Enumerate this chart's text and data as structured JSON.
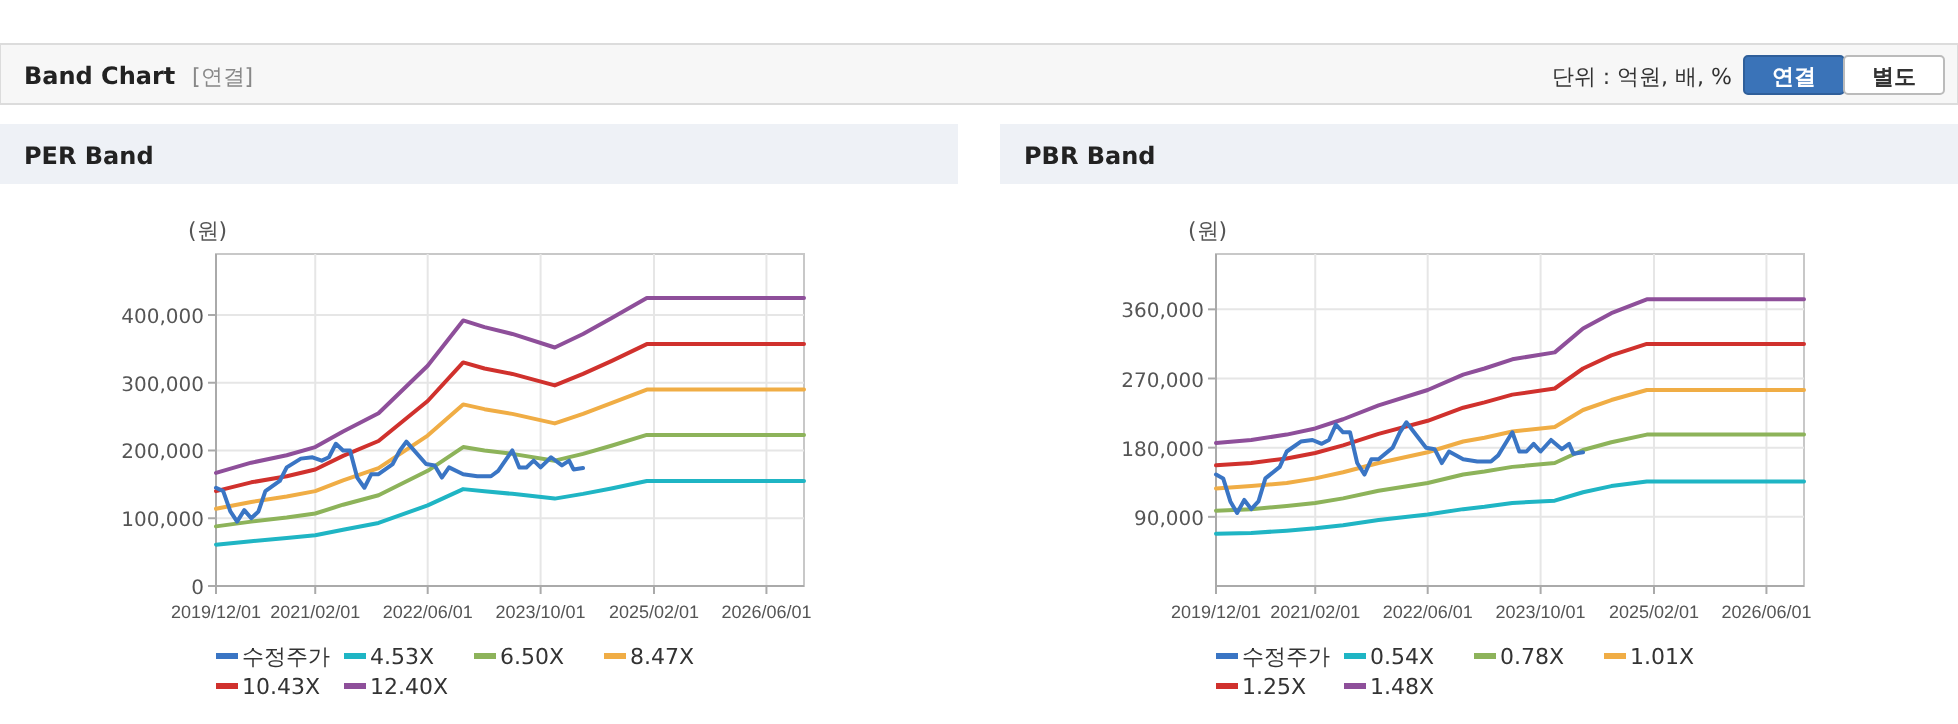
{
  "chart_data": [
    {
      "type": "other",
      "title": "Band Chart",
      "annotations": [
        "[연결]",
        "단위 : 억원, 배, %",
        "연결",
        "별도"
      ]
    },
    {
      "type": "line",
      "title": "PER Band",
      "ylabel": "(원)",
      "grid": true,
      "legend": "bottom",
      "marker": "none",
      "line_style": "solid",
      "xlim": [
        "2019-12-01",
        "2026-11-10"
      ],
      "xticks": [
        {
          "value": "2019-12-01",
          "label": "2019/12/01"
        },
        {
          "value": "2021-02-01",
          "label": "2021/02/01"
        },
        {
          "value": "2022-06-01",
          "label": "2022/06/01"
        },
        {
          "value": "2023-10-01",
          "label": "2023/10/01"
        },
        {
          "value": "2025-02-01",
          "label": "2025/02/01"
        },
        {
          "value": "2026-06-01",
          "label": "2026/06/01"
        }
      ],
      "ylim": [
        0,
        490000
      ],
      "yticks": [
        0,
        {
          "value": 100000,
          "label": "100,000"
        },
        {
          "value": 200000,
          "label": "200,000"
        },
        {
          "value": 300000,
          "label": "300,000"
        },
        {
          "value": 400000,
          "label": "400,000"
        }
      ],
      "series": [
        {
          "name": "수정주가",
          "color": "#3a75c4",
          "x": [
            "2019-12-01",
            "2020-01-01",
            "2020-02-01",
            "2020-03-01",
            "2020-04-01",
            "2020-05-01",
            "2020-06-01",
            "2020-07-01",
            "2020-09-01",
            "2020-10-01",
            "2020-12-01",
            "2021-01-20",
            "2021-03-01",
            "2021-04-01",
            "2021-05-01",
            "2021-06-01",
            "2021-07-01",
            "2021-08-01",
            "2021-09-01",
            "2021-10-01",
            "2021-11-01",
            "2022-01-01",
            "2022-02-01",
            "2022-03-01",
            "2022-05-25",
            "2022-07-01",
            "2022-08-01",
            "2022-09-01",
            "2022-11-01",
            "2023-01-01",
            "2023-03-01",
            "2023-04-01",
            "2023-06-01",
            "2023-07-01",
            "2023-08-01",
            "2023-09-01",
            "2023-10-01",
            "2023-11-15",
            "2024-01-01",
            "2024-02-01",
            "2024-02-20",
            "2024-04-01"
          ],
          "values": [
            145000,
            140000,
            110000,
            95000,
            112000,
            100000,
            110000,
            140000,
            155000,
            175000,
            188000,
            190000,
            185000,
            190000,
            210000,
            200000,
            200000,
            160000,
            145000,
            165000,
            165000,
            180000,
            200000,
            213000,
            180000,
            178000,
            160000,
            175000,
            165000,
            162000,
            162000,
            170000,
            200000,
            175000,
            175000,
            185000,
            175000,
            190000,
            178000,
            185000,
            172000,
            174000
          ]
        },
        {
          "name": "4.53X",
          "color": "#1fb5c4",
          "x": [
            "2019-12-01",
            "2020-05-01",
            "2020-10-01",
            "2021-02-01",
            "2021-06-01",
            "2021-11-01",
            "2022-06-01",
            "2022-11-01",
            "2023-02-01",
            "2023-06-01",
            "2023-12-01",
            "2024-04-01",
            "2024-08-01",
            "2025-01-01",
            "2026-11-10"
          ],
          "values": [
            61000,
            66000,
            71000,
            75000,
            83000,
            93000,
            119000,
            143000,
            140000,
            136000,
            129000,
            136000,
            144000,
            155000,
            155000
          ]
        },
        {
          "name": "6.50X",
          "color": "#8db35a",
          "x": [
            "2019-12-01",
            "2020-05-01",
            "2020-10-01",
            "2021-02-01",
            "2021-06-01",
            "2021-11-01",
            "2022-06-01",
            "2022-11-01",
            "2023-02-01",
            "2023-06-01",
            "2023-12-01",
            "2024-04-01",
            "2024-08-01",
            "2025-01-01",
            "2026-11-10"
          ],
          "values": [
            88000,
            95000,
            101000,
            107000,
            120000,
            134000,
            170000,
            205000,
            200000,
            195000,
            185000,
            195000,
            207000,
            223000,
            223000
          ]
        },
        {
          "name": "8.47X",
          "color": "#f0ad45",
          "x": [
            "2019-12-01",
            "2020-05-01",
            "2020-10-01",
            "2021-02-01",
            "2021-06-01",
            "2021-11-01",
            "2022-06-01",
            "2022-11-01",
            "2023-02-01",
            "2023-06-01",
            "2023-12-01",
            "2024-04-01",
            "2024-08-01",
            "2025-01-01",
            "2026-11-10"
          ],
          "values": [
            114000,
            124000,
            132000,
            140000,
            156000,
            174000,
            222000,
            268000,
            261000,
            254000,
            240000,
            254000,
            270000,
            290000,
            290000
          ]
        },
        {
          "name": "10.43X",
          "color": "#d0312d",
          "x": [
            "2019-12-01",
            "2020-05-01",
            "2020-10-01",
            "2021-02-01",
            "2021-06-01",
            "2021-11-01",
            "2022-06-01",
            "2022-11-01",
            "2023-02-01",
            "2023-06-01",
            "2023-12-01",
            "2024-04-01",
            "2024-08-01",
            "2025-01-01",
            "2026-11-10"
          ],
          "values": [
            140000,
            153000,
            162000,
            172000,
            192000,
            214000,
            273000,
            330000,
            321000,
            313000,
            296000,
            313000,
            332000,
            357000,
            357000
          ]
        },
        {
          "name": "12.40X",
          "color": "#8e4f9a",
          "x": [
            "2019-12-01",
            "2020-05-01",
            "2020-10-01",
            "2021-02-01",
            "2021-06-01",
            "2021-11-01",
            "2022-06-01",
            "2022-11-01",
            "2023-02-01",
            "2023-06-01",
            "2023-12-01",
            "2024-04-01",
            "2024-08-01",
            "2025-01-01",
            "2026-11-10"
          ],
          "values": [
            167000,
            182000,
            193000,
            205000,
            228000,
            255000,
            325000,
            392000,
            382000,
            372000,
            352000,
            372000,
            395000,
            425000,
            425000
          ]
        }
      ]
    },
    {
      "type": "line",
      "title": "PBR Band",
      "ylabel": "(원)",
      "grid": true,
      "legend": "bottom",
      "marker": "none",
      "line_style": "solid",
      "xlim": [
        "2019-12-01",
        "2026-11-10"
      ],
      "xticks": [
        {
          "value": "2019-12-01",
          "label": "2019/12/01"
        },
        {
          "value": "2021-02-01",
          "label": "2021/02/01"
        },
        {
          "value": "2022-06-01",
          "label": "2022/06/01"
        },
        {
          "value": "2023-10-01",
          "label": "2023/10/01"
        },
        {
          "value": "2025-02-01",
          "label": "2025/02/01"
        },
        {
          "value": "2026-06-01",
          "label": "2026/06/01"
        }
      ],
      "ylim": [
        0,
        432000
      ],
      "yticks": [
        {
          "value": 90000,
          "label": "90,000"
        },
        {
          "value": 180000,
          "label": "180,000"
        },
        {
          "value": 270000,
          "label": "270,000"
        },
        {
          "value": 360000,
          "label": "360,000"
        }
      ],
      "series": [
        {
          "name": "수정주가",
          "color": "#3a75c4",
          "x": [
            "2019-12-01",
            "2020-01-01",
            "2020-02-01",
            "2020-03-01",
            "2020-04-01",
            "2020-05-01",
            "2020-06-01",
            "2020-07-01",
            "2020-09-01",
            "2020-10-01",
            "2020-12-01",
            "2021-01-20",
            "2021-03-01",
            "2021-04-01",
            "2021-05-01",
            "2021-06-01",
            "2021-07-01",
            "2021-08-01",
            "2021-09-01",
            "2021-10-01",
            "2021-11-01",
            "2022-01-01",
            "2022-02-01",
            "2022-03-01",
            "2022-05-25",
            "2022-07-01",
            "2022-08-01",
            "2022-09-01",
            "2022-11-01",
            "2023-01-01",
            "2023-03-01",
            "2023-04-01",
            "2023-06-01",
            "2023-07-01",
            "2023-08-01",
            "2023-09-01",
            "2023-10-01",
            "2023-11-15",
            "2024-01-01",
            "2024-02-01",
            "2024-02-20",
            "2024-04-01"
          ],
          "values": [
            145000,
            140000,
            110000,
            95000,
            112000,
            100000,
            110000,
            140000,
            155000,
            175000,
            188000,
            190000,
            185000,
            190000,
            210000,
            200000,
            200000,
            160000,
            145000,
            165000,
            165000,
            180000,
            200000,
            213000,
            180000,
            178000,
            160000,
            175000,
            165000,
            162000,
            162000,
            170000,
            200000,
            175000,
            175000,
            185000,
            175000,
            190000,
            178000,
            185000,
            172000,
            174000
          ]
        },
        {
          "name": "0.54X",
          "color": "#1fb5c4",
          "x": [
            "2019-12-01",
            "2020-05-01",
            "2020-10-01",
            "2021-02-01",
            "2021-06-01",
            "2021-11-01",
            "2022-06-01",
            "2022-11-01",
            "2023-02-01",
            "2023-06-01",
            "2023-12-01",
            "2024-04-01",
            "2024-08-01",
            "2025-01-01",
            "2026-11-10"
          ],
          "values": [
            68000,
            69000,
            72000,
            75000,
            79000,
            86000,
            93000,
            100000,
            103000,
            108000,
            111000,
            122000,
            130000,
            136000,
            136000
          ]
        },
        {
          "name": "0.78X",
          "color": "#8db35a",
          "x": [
            "2019-12-01",
            "2020-05-01",
            "2020-10-01",
            "2021-02-01",
            "2021-06-01",
            "2021-11-01",
            "2022-06-01",
            "2022-11-01",
            "2023-02-01",
            "2023-06-01",
            "2023-12-01",
            "2024-04-01",
            "2024-08-01",
            "2025-01-01",
            "2026-11-10"
          ],
          "values": [
            98000,
            100000,
            104000,
            108000,
            114000,
            124000,
            134000,
            145000,
            149000,
            155000,
            160000,
            177000,
            187000,
            197000,
            197000
          ]
        },
        {
          "name": "1.01X",
          "color": "#f0ad45",
          "x": [
            "2019-12-01",
            "2020-05-01",
            "2020-10-01",
            "2021-02-01",
            "2021-06-01",
            "2021-11-01",
            "2022-06-01",
            "2022-11-01",
            "2023-02-01",
            "2023-06-01",
            "2023-12-01",
            "2024-04-01",
            "2024-08-01",
            "2025-01-01",
            "2026-11-10"
          ],
          "values": [
            127000,
            130000,
            134000,
            140000,
            148000,
            160000,
            174000,
            188000,
            193000,
            201000,
            207000,
            229000,
            242000,
            255000,
            255000
          ]
        },
        {
          "name": "1.25X",
          "color": "#d0312d",
          "x": [
            "2019-12-01",
            "2020-05-01",
            "2020-10-01",
            "2021-02-01",
            "2021-06-01",
            "2021-11-01",
            "2022-06-01",
            "2022-11-01",
            "2023-02-01",
            "2023-06-01",
            "2023-12-01",
            "2024-04-01",
            "2024-08-01",
            "2025-01-01",
            "2026-11-10"
          ],
          "values": [
            157000,
            160000,
            166000,
            173000,
            183000,
            198000,
            215000,
            232000,
            239000,
            249000,
            257000,
            283000,
            300000,
            315000,
            315000
          ]
        },
        {
          "name": "1.48X",
          "color": "#8e4f9a",
          "x": [
            "2019-12-01",
            "2020-05-01",
            "2020-10-01",
            "2021-02-01",
            "2021-06-01",
            "2021-11-01",
            "2022-06-01",
            "2022-11-01",
            "2023-02-01",
            "2023-06-01",
            "2023-12-01",
            "2024-04-01",
            "2024-08-01",
            "2025-01-01",
            "2026-11-10"
          ],
          "values": [
            186000,
            190000,
            197000,
            205000,
            217000,
            235000,
            255000,
            275000,
            283000,
            295000,
            304000,
            335000,
            355000,
            373000,
            373000
          ]
        }
      ]
    }
  ]
}
